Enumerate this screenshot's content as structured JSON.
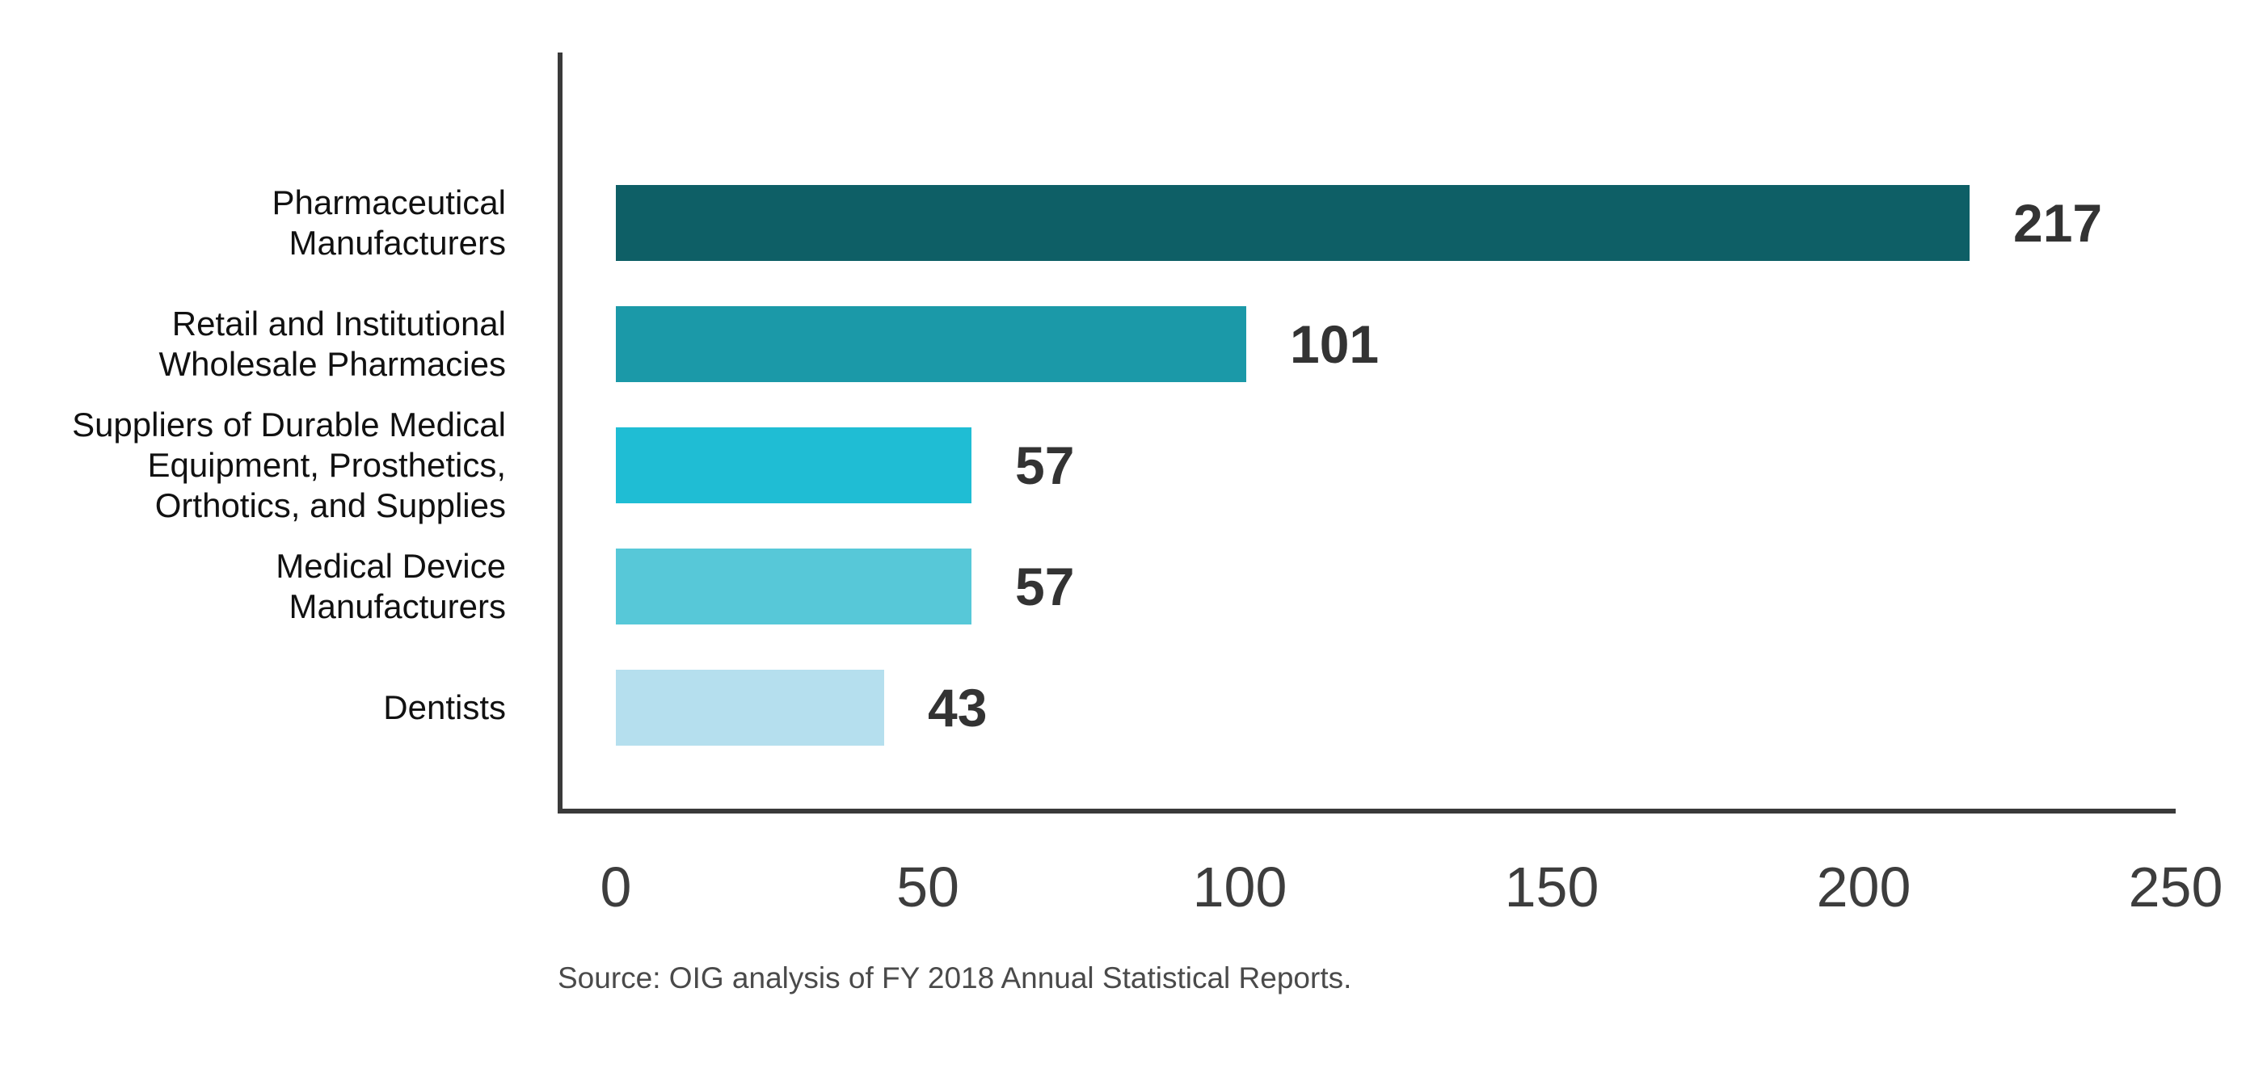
{
  "chart_data": {
    "type": "bar",
    "orientation": "horizontal",
    "categories": [
      [
        "Pharmaceutical",
        "Manufacturers"
      ],
      [
        "Retail and Institutional",
        "Wholesale Pharmacies"
      ],
      [
        "Suppliers of Durable Medical",
        "Equipment, Prosthetics,",
        "Orthotics, and Supplies"
      ],
      [
        "Medical Device",
        "Manufacturers"
      ],
      [
        "Dentists"
      ]
    ],
    "values": [
      217,
      101,
      57,
      57,
      43
    ],
    "value_labels": [
      "217",
      "101",
      "57",
      "57",
      "43"
    ],
    "bar_colors": [
      "#0E5F66",
      "#1B99A8",
      "#1FBDD4",
      "#57C8D8",
      "#B5DFEE"
    ],
    "xlim": [
      0,
      250
    ],
    "x_ticks": [
      0,
      50,
      100,
      150,
      200,
      250
    ],
    "x_tick_labels": [
      "0",
      "50",
      "100",
      "150",
      "200",
      "250"
    ],
    "grid": "off",
    "legend": "none",
    "title": "",
    "xlabel": "",
    "ylabel": "",
    "axis_color": "#3A3A3A",
    "source_note": "Source: OIG analysis of FY 2018 Annual Statistical Reports."
  }
}
